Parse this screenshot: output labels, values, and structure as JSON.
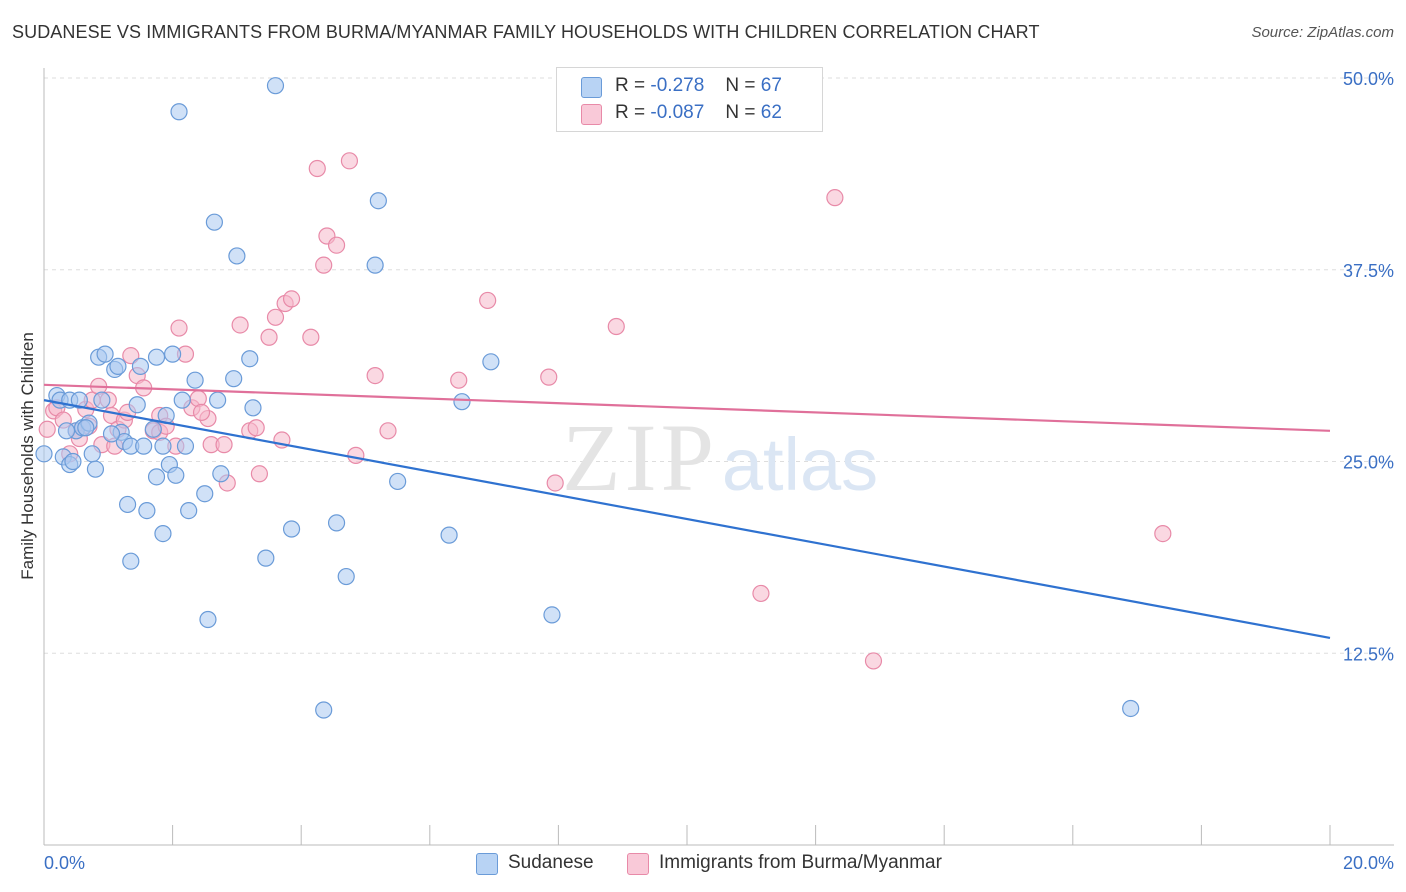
{
  "title": "SUDANESE VS IMMIGRANTS FROM BURMA/MYANMAR FAMILY HOUSEHOLDS WITH CHILDREN CORRELATION CHART",
  "source": "Source: ZipAtlas.com",
  "watermark": {
    "zip": "ZIP",
    "atlas": "atlas"
  },
  "colors": {
    "blue_fill": "#a9c8f0",
    "blue_stroke": "#6a9bd8",
    "blue_line": "#2f72d0",
    "pink_fill": "#f6b8cb",
    "pink_stroke": "#e88aa8",
    "pink_line": "#e0709a",
    "grid": "#dddddd",
    "axis_text": "#3a6fc4"
  },
  "legend_top": {
    "rows": [
      {
        "r_label": "R =",
        "r_value": "-0.278",
        "n_label": "N =",
        "n_value": "67"
      },
      {
        "r_label": "R =",
        "r_value": "-0.087",
        "n_label": "N =",
        "n_value": "62"
      }
    ]
  },
  "chart_data": {
    "type": "scatter",
    "ylabel": "Family Households with Children",
    "xlim": [
      0,
      20
    ],
    "ylim": [
      0,
      50
    ],
    "y_ticks": [
      {
        "value": 50,
        "label": "50.0%"
      },
      {
        "value": 37.5,
        "label": "37.5%"
      },
      {
        "value": 25,
        "label": "25.0%"
      },
      {
        "value": 12.5,
        "label": "12.5%"
      }
    ],
    "x_tick_labels": {
      "min": "0.0%",
      "max": "20.0%"
    },
    "legend_placement": "top-center",
    "series": [
      {
        "name": "Sudanese",
        "color": "#6a9bd8",
        "trend": {
          "x": [
            0,
            20
          ],
          "y": [
            29.0,
            13.5
          ]
        },
        "points": [
          [
            0.0,
            25.5
          ],
          [
            0.2,
            29.3
          ],
          [
            0.3,
            25.3
          ],
          [
            0.4,
            24.8
          ],
          [
            0.25,
            29.0
          ],
          [
            0.4,
            29.0
          ],
          [
            0.5,
            27.0
          ],
          [
            0.6,
            27.2
          ],
          [
            0.7,
            27.5
          ],
          [
            0.75,
            25.5
          ],
          [
            0.8,
            24.5
          ],
          [
            0.85,
            31.8
          ],
          [
            0.9,
            29.0
          ],
          [
            0.95,
            32.0
          ],
          [
            1.1,
            31.0
          ],
          [
            1.15,
            31.2
          ],
          [
            1.2,
            26.9
          ],
          [
            1.25,
            26.3
          ],
          [
            1.3,
            22.2
          ],
          [
            1.35,
            18.5
          ],
          [
            1.35,
            26.0
          ],
          [
            1.45,
            28.7
          ],
          [
            1.5,
            31.2
          ],
          [
            1.55,
            26.0
          ],
          [
            1.6,
            21.8
          ],
          [
            1.7,
            27.1
          ],
          [
            1.75,
            31.8
          ],
          [
            1.75,
            24.0
          ],
          [
            1.85,
            26.0
          ],
          [
            1.85,
            20.3
          ],
          [
            1.9,
            28.0
          ],
          [
            1.95,
            24.8
          ],
          [
            2.0,
            32.0
          ],
          [
            2.05,
            24.1
          ],
          [
            2.1,
            47.8
          ],
          [
            2.15,
            29.0
          ],
          [
            2.2,
            26.0
          ],
          [
            2.25,
            21.8
          ],
          [
            2.35,
            30.3
          ],
          [
            2.5,
            22.9
          ],
          [
            2.55,
            14.7
          ],
          [
            2.65,
            40.6
          ],
          [
            2.7,
            29.0
          ],
          [
            2.75,
            24.2
          ],
          [
            2.95,
            30.4
          ],
          [
            3.0,
            38.4
          ],
          [
            3.2,
            31.7
          ],
          [
            3.25,
            28.5
          ],
          [
            3.45,
            18.7
          ],
          [
            3.6,
            49.5
          ],
          [
            3.85,
            20.6
          ],
          [
            4.35,
            8.8
          ],
          [
            4.55,
            21.0
          ],
          [
            4.7,
            17.5
          ],
          [
            5.15,
            37.8
          ],
          [
            5.2,
            42.0
          ],
          [
            5.5,
            23.7
          ],
          [
            6.3,
            20.2
          ],
          [
            6.5,
            28.9
          ],
          [
            6.95,
            31.5
          ],
          [
            7.9,
            15.0
          ],
          [
            16.9,
            8.9
          ],
          [
            0.55,
            29.0
          ],
          [
            0.65,
            27.2
          ],
          [
            1.05,
            26.8
          ],
          [
            0.35,
            27.0
          ],
          [
            0.45,
            25.0
          ]
        ]
      },
      {
        "name": "Immigrants from Burma/Myanmar",
        "color": "#e88aa8",
        "trend": {
          "x": [
            0,
            20
          ],
          "y": [
            30.0,
            27.0
          ]
        },
        "points": [
          [
            0.05,
            27.1
          ],
          [
            0.15,
            28.3
          ],
          [
            0.2,
            28.5
          ],
          [
            0.3,
            27.7
          ],
          [
            0.4,
            25.5
          ],
          [
            0.5,
            27.0
          ],
          [
            0.55,
            26.5
          ],
          [
            0.65,
            28.4
          ],
          [
            0.7,
            27.3
          ],
          [
            0.75,
            29.0
          ],
          [
            0.85,
            29.9
          ],
          [
            0.9,
            26.1
          ],
          [
            1.0,
            29.0
          ],
          [
            1.05,
            28.0
          ],
          [
            1.1,
            26.0
          ],
          [
            1.15,
            27.1
          ],
          [
            1.25,
            27.7
          ],
          [
            1.3,
            28.2
          ],
          [
            1.35,
            31.9
          ],
          [
            1.45,
            30.6
          ],
          [
            1.55,
            29.8
          ],
          [
            1.7,
            27.0
          ],
          [
            1.8,
            26.9
          ],
          [
            1.8,
            28.0
          ],
          [
            1.9,
            27.3
          ],
          [
            2.05,
            26.0
          ],
          [
            2.1,
            33.7
          ],
          [
            2.2,
            32.0
          ],
          [
            2.3,
            28.5
          ],
          [
            2.4,
            29.1
          ],
          [
            2.55,
            27.8
          ],
          [
            2.6,
            26.1
          ],
          [
            2.8,
            26.1
          ],
          [
            2.85,
            23.6
          ],
          [
            3.05,
            33.9
          ],
          [
            3.2,
            27.0
          ],
          [
            3.35,
            24.2
          ],
          [
            3.5,
            33.1
          ],
          [
            3.6,
            34.4
          ],
          [
            3.75,
            35.3
          ],
          [
            3.85,
            35.6
          ],
          [
            4.15,
            33.1
          ],
          [
            4.25,
            44.1
          ],
          [
            4.35,
            37.8
          ],
          [
            4.4,
            39.7
          ],
          [
            4.55,
            39.1
          ],
          [
            4.75,
            44.6
          ],
          [
            4.85,
            25.4
          ],
          [
            5.15,
            30.6
          ],
          [
            5.35,
            27.0
          ],
          [
            6.45,
            30.3
          ],
          [
            6.9,
            35.5
          ],
          [
            7.85,
            30.5
          ],
          [
            7.95,
            23.6
          ],
          [
            8.9,
            33.8
          ],
          [
            11.15,
            16.4
          ],
          [
            12.3,
            42.2
          ],
          [
            12.9,
            12.0
          ],
          [
            17.4,
            20.3
          ],
          [
            3.3,
            27.2
          ],
          [
            2.45,
            28.2
          ],
          [
            3.7,
            26.4
          ]
        ]
      }
    ]
  }
}
